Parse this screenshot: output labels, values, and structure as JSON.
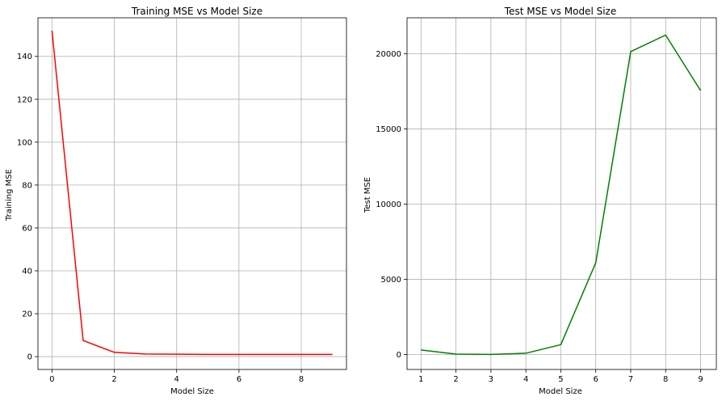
{
  "chart_data": [
    {
      "type": "line",
      "title": "Training MSE vs Model Size",
      "xlabel": "Model Size",
      "ylabel": "Training MSE",
      "xlim": [
        -0.45,
        9.45
      ],
      "ylim": [
        -6,
        158
      ],
      "xticks": [
        0,
        2,
        4,
        6,
        8
      ],
      "yticks": [
        0,
        20,
        40,
        60,
        80,
        100,
        120,
        140
      ],
      "grid": true,
      "line_color": "#ff0000",
      "x": [
        0,
        1,
        2,
        3,
        4,
        5,
        6,
        7,
        8,
        9
      ],
      "values": [
        152,
        7.5,
        2,
        1.2,
        1.1,
        1.0,
        1.0,
        1.0,
        1.0,
        1.0
      ]
    },
    {
      "type": "line",
      "title": "Test MSE vs Model Size",
      "xlabel": "Model Size",
      "ylabel": "Test MSE",
      "xlim": [
        0.6,
        9.45
      ],
      "ylim": [
        -1000,
        22400
      ],
      "xticks": [
        1,
        2,
        3,
        4,
        5,
        6,
        7,
        8,
        9
      ],
      "yticks": [
        0,
        5000,
        10000,
        15000,
        20000
      ],
      "grid": true,
      "line_color": "#008000",
      "x": [
        1,
        2,
        3,
        4,
        5,
        6,
        7,
        8,
        9
      ],
      "values": [
        300,
        20,
        0,
        80,
        650,
        6100,
        20150,
        21250,
        17550
      ]
    }
  ]
}
